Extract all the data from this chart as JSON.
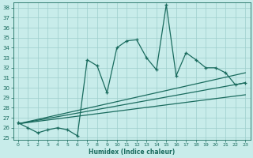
{
  "title": "",
  "xlabel": "Humidex (Indice chaleur)",
  "bg_color": "#c8ecea",
  "grid_color": "#9ecfcc",
  "line_color": "#1a6b5e",
  "xlim": [
    -0.5,
    23.5
  ],
  "ylim": [
    24.8,
    38.5
  ],
  "xticks": [
    0,
    1,
    2,
    3,
    4,
    5,
    6,
    7,
    8,
    9,
    10,
    11,
    12,
    13,
    14,
    15,
    16,
    17,
    18,
    19,
    20,
    21,
    22,
    23
  ],
  "yticks": [
    25,
    26,
    27,
    28,
    29,
    30,
    31,
    32,
    33,
    34,
    35,
    36,
    37,
    38
  ],
  "main_series": {
    "x": [
      0,
      1,
      2,
      3,
      4,
      5,
      6,
      7,
      8,
      9,
      10,
      11,
      12,
      13,
      14,
      15,
      16,
      17,
      18,
      19,
      20,
      21,
      22,
      23
    ],
    "y": [
      26.5,
      26.0,
      25.5,
      25.8,
      26.0,
      25.8,
      25.2,
      32.8,
      32.2,
      29.5,
      34.0,
      34.7,
      34.8,
      33.0,
      31.8,
      38.3,
      31.2,
      33.5,
      32.8,
      32.0,
      32.0,
      31.5,
      30.3,
      30.5
    ]
  },
  "straight_lines": [
    {
      "x0": 0,
      "y0": 26.4,
      "x1": 23,
      "y1": 30.5
    },
    {
      "x0": 0,
      "y0": 26.4,
      "x1": 23,
      "y1": 29.3
    },
    {
      "x0": 0,
      "y0": 26.4,
      "x1": 23,
      "y1": 31.5
    }
  ]
}
